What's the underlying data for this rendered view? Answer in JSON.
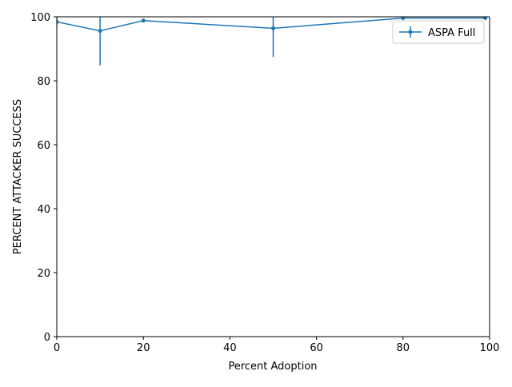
{
  "chart_data": {
    "type": "line",
    "title": "",
    "xlabel": "Percent Adoption",
    "ylabel": "PERCENT ATTACKER SUCCESS",
    "xlim": [
      0,
      100
    ],
    "ylim": [
      0,
      100
    ],
    "xticks": [
      0,
      20,
      40,
      60,
      80,
      100
    ],
    "yticks": [
      0,
      20,
      40,
      60,
      80,
      100
    ],
    "grid": false,
    "legend_position": "top-right",
    "series": [
      {
        "name": "ASPA Full",
        "color": "#1f77b4",
        "x": [
          0,
          10,
          20,
          50,
          80,
          99
        ],
        "y": [
          98.4,
          95.6,
          98.8,
          96.4,
          99.6,
          99.6
        ],
        "yerr": [
          1.6,
          10.8,
          0.4,
          9.0,
          0.2,
          0.2
        ]
      }
    ]
  }
}
